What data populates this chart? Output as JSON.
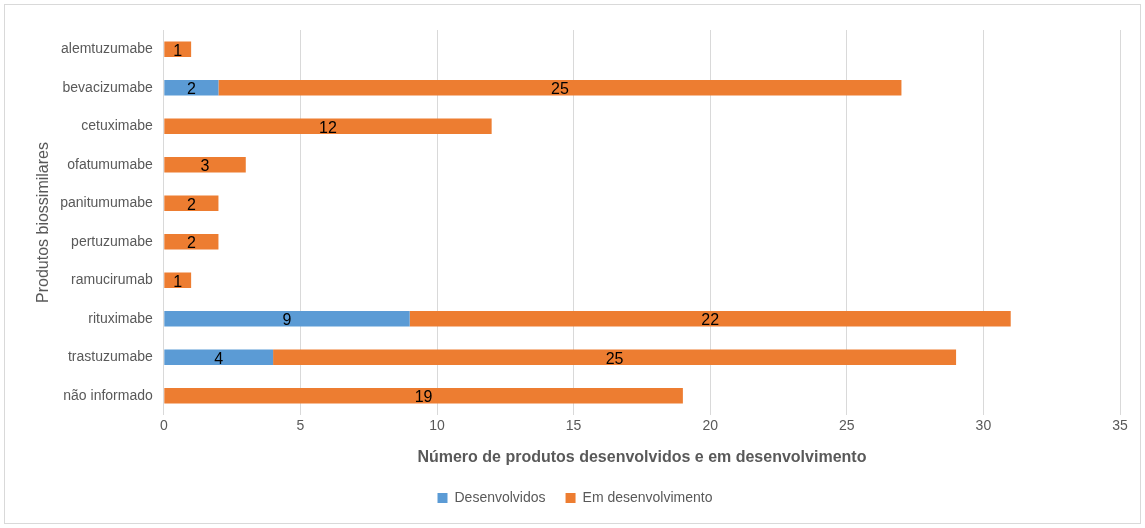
{
  "chart_data": {
    "type": "bar",
    "orientation": "horizontal",
    "stacked": true,
    "xlabel": "Número de produtos desenvolvidos e em desenvolvimento",
    "ylabel": "Produtos biossimilares",
    "categories": [
      "alemtuzumabe",
      "bevacizumabe",
      "cetuximabe",
      "ofatumumabe",
      "panitumumabe",
      "pertuzumabe",
      "ramucirumab",
      "rituximabe",
      "trastuzumabe",
      "não informado"
    ],
    "series": [
      {
        "name": "Desenvolvidos",
        "color": "#5b9bd5",
        "values": [
          null,
          2,
          null,
          null,
          null,
          null,
          null,
          9,
          4,
          null
        ]
      },
      {
        "name": "Em desenvolvimento",
        "color": "#ed7d31",
        "values": [
          1,
          25,
          12,
          3,
          2,
          2,
          1,
          22,
          25,
          19
        ]
      }
    ],
    "xlim": [
      0,
      35
    ],
    "xticks": [
      0,
      5,
      10,
      15,
      20,
      25,
      30,
      35
    ],
    "grid": "x",
    "legend": "bottom",
    "data_labels": true
  }
}
